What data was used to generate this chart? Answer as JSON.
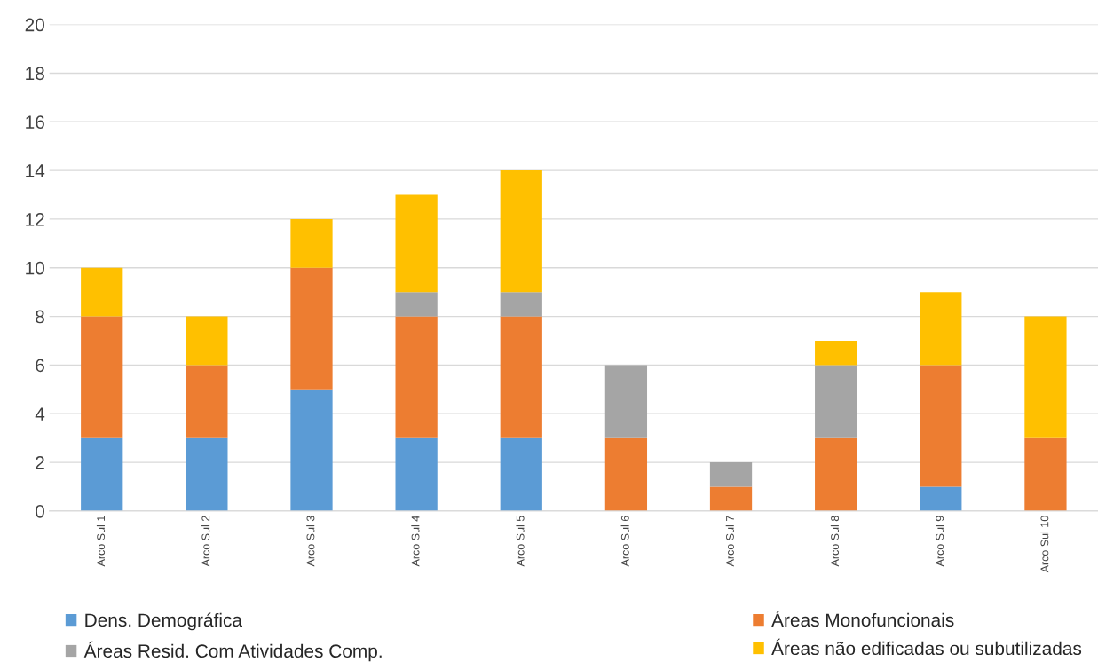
{
  "chart_data": {
    "type": "bar",
    "stacked": true,
    "categories": [
      "Arco Sul 1",
      "Arco Sul 2",
      "Arco Sul 3",
      "Arco Sul 4",
      "Arco Sul 5",
      "Arco Sul 6",
      "Arco Sul 7",
      "Arco Sul 8",
      "Arco Sul 9",
      "Arco Sul 10"
    ],
    "series": [
      {
        "name": "Dens. Demográfica",
        "color": "#5b9bd5",
        "values": [
          3,
          3,
          5,
          3,
          3,
          0,
          0,
          0,
          1,
          0
        ]
      },
      {
        "name": "Áreas Monofuncionais",
        "color": "#ed7d31",
        "values": [
          5,
          3,
          5,
          5,
          5,
          3,
          1,
          3,
          5,
          3
        ]
      },
      {
        "name": "Áreas Resid. Com Atividades Comp.",
        "color": "#a5a5a5",
        "values": [
          0,
          0,
          0,
          1,
          1,
          3,
          1,
          3,
          0,
          0
        ]
      },
      {
        "name": "Áreas não edificadas ou subutilizadas",
        "color": "#ffc000",
        "values": [
          2,
          2,
          2,
          4,
          5,
          0,
          0,
          1,
          3,
          5
        ]
      }
    ],
    "ylim": [
      0,
      20
    ],
    "yticks": [
      0,
      2,
      4,
      6,
      8,
      10,
      12,
      14,
      16,
      18,
      20
    ],
    "grid": "y",
    "legend": "bottom"
  }
}
